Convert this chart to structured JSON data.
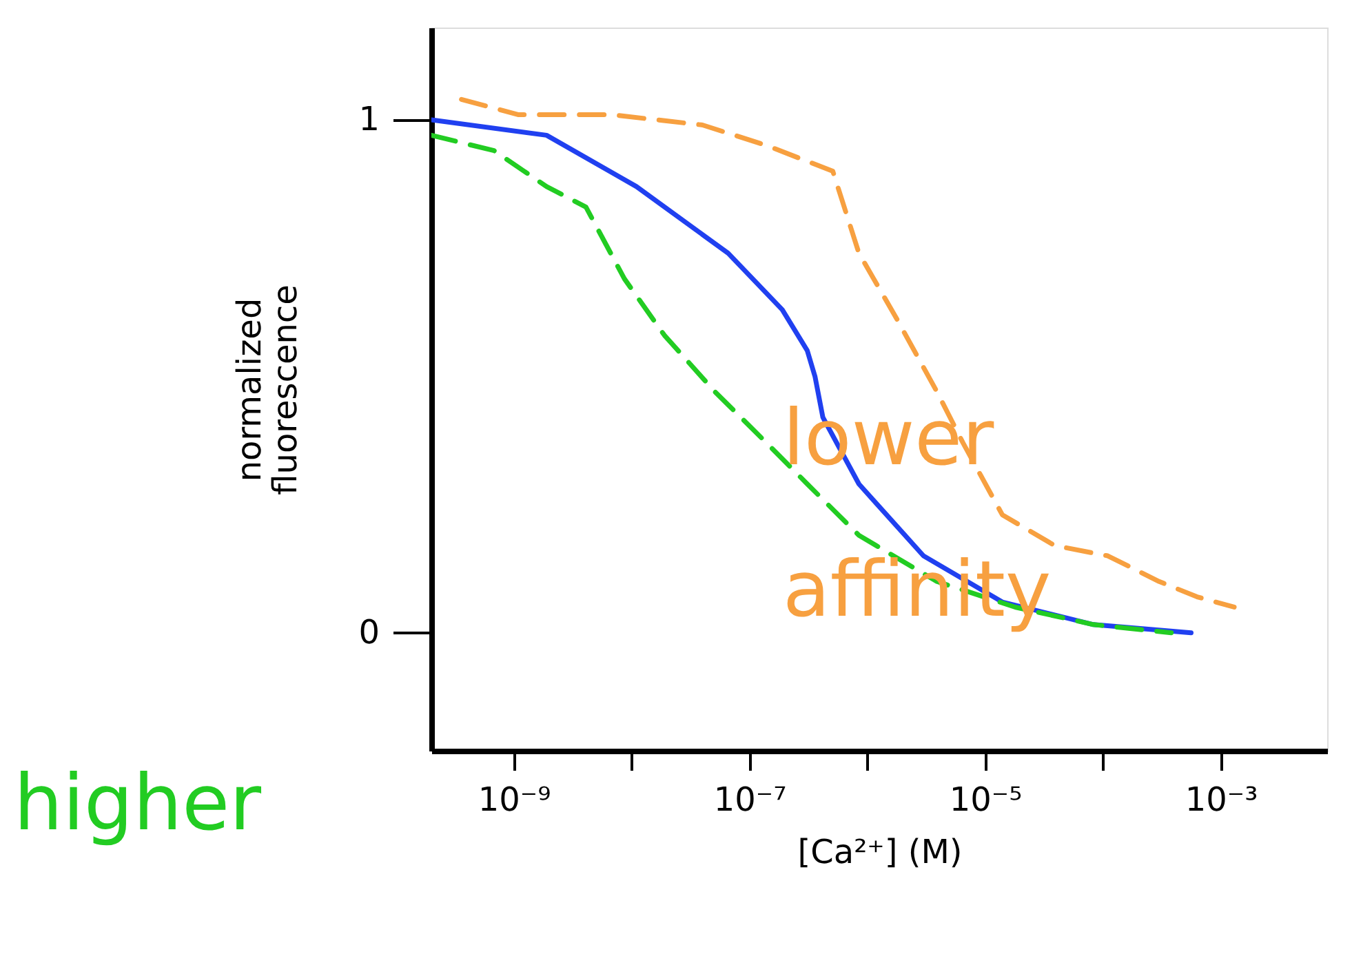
{
  "chart_data": {
    "type": "line",
    "xlabel": "[Ca²⁺] (M)",
    "ylabel": "normalized fluorescence",
    "log": "x",
    "grid": false,
    "marker": "none",
    "xlim": [
      2e-10,
      0.008
    ],
    "xticks": [
      {
        "value": 1e-09,
        "label": "10⁻⁹"
      },
      {
        "value": 1e-08,
        "label": null
      },
      {
        "value": 1e-07,
        "label": "10⁻⁷"
      },
      {
        "value": 1e-06,
        "label": null
      },
      {
        "value": 1e-05,
        "label": "10⁻⁵"
      },
      {
        "value": 0.0001,
        "label": null
      },
      {
        "value": 0.001,
        "label": "10⁻³"
      }
    ],
    "ylim": [
      -0.23,
      1.18
    ],
    "yticks": [
      0,
      1
    ],
    "series": [
      {
        "color": "#2040f0",
        "line_style": "solid",
        "x": [
          2e-10,
          1.9e-09,
          1.1e-08,
          6.6e-08,
          1.9e-07,
          3.1e-07,
          3.6e-07,
          4.2e-07,
          8.5e-07,
          3e-06,
          1.4e-05,
          8.3e-05,
          0.00056
        ],
        "values": [
          1.0,
          0.97,
          0.87,
          0.74,
          0.63,
          0.55,
          0.5,
          0.42,
          0.29,
          0.15,
          0.06,
          0.016,
          0
        ]
      },
      {
        "name": "higher",
        "color": "#22cc22",
        "line_style": "dashed",
        "x": [
          2e-10,
          6.8e-10,
          1.9e-09,
          4.1e-09,
          8.7e-09,
          1.9e-08,
          5.1e-08,
          1.4e-07,
          3.1e-07,
          8.5e-07,
          3.9e-06,
          1.8e-05,
          8.3e-05,
          0.00038
        ],
        "values": [
          0.97,
          0.94,
          0.87,
          0.83,
          0.69,
          0.58,
          0.47,
          0.37,
          0.29,
          0.19,
          0.1,
          0.05,
          0.016,
          0
        ]
      },
      {
        "name": "lower affinity",
        "color": "#f7a040",
        "line_style": "dashed",
        "x": [
          3.6e-10,
          1.1e-09,
          6.8e-09,
          4e-08,
          1.4e-07,
          5.1e-07,
          8.5e-07,
          1.8e-06,
          3.9e-06,
          6.5e-06,
          1.4e-05,
          3.9e-05,
          0.00011,
          0.0003,
          0.00063,
          0.0013
        ],
        "values": [
          1.04,
          1.01,
          1.01,
          0.99,
          0.95,
          0.9,
          0.74,
          0.61,
          0.47,
          0.37,
          0.23,
          0.17,
          0.15,
          0.1,
          0.07,
          0.05
        ]
      }
    ]
  }
}
